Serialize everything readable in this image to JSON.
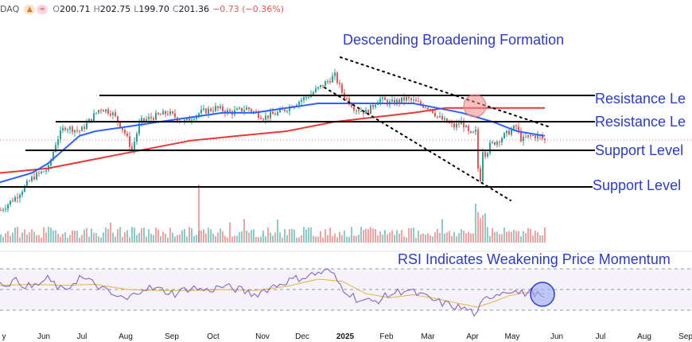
{
  "legend": {
    "symbol": "DAQ",
    "icons": [
      "flame-icon",
      "flag-icon"
    ],
    "open_label": "O",
    "open": "200.71",
    "high_label": "H",
    "high": "202.75",
    "low_label": "L",
    "low": "199.70",
    "close_label": "C",
    "close": "201.36",
    "change": "−0.73 (−0.36%)"
  },
  "colors": {
    "price": "#26a69a",
    "price_down": "#ef5350",
    "ma_short": "#2962ff",
    "ma_long": "#e53935",
    "rsi": "#7e57c2",
    "rsi_ma": "#e2b53c",
    "annotation": "#2b3ad6",
    "highlight_red": "#f28b8b",
    "highlight_blue": "#9aa8f5"
  },
  "chart_data": {
    "type": "line",
    "title": "Descending Broadening Formation",
    "x_ticks": [
      "y",
      "Jun",
      "Jul",
      "Aug",
      "Sep",
      "Oct",
      "Nov",
      "Dec",
      "2025",
      "Feb",
      "Mar",
      "Apr",
      "May",
      "Jun",
      "Jul",
      "Aug",
      "Sep"
    ],
    "horizontal_levels": [
      {
        "label": "Resistance Le",
        "kind": "resistance"
      },
      {
        "label": "Resistance Le",
        "kind": "resistance"
      },
      {
        "label": "Support Level",
        "kind": "support"
      },
      {
        "label": "Support Level",
        "kind": "support"
      }
    ],
    "price_keyframes": [
      [
        0,
        205
      ],
      [
        20,
        208
      ],
      [
        40,
        212
      ],
      [
        60,
        214
      ],
      [
        70,
        220
      ],
      [
        80,
        223
      ],
      [
        100,
        222
      ],
      [
        115,
        225
      ],
      [
        125,
        227
      ],
      [
        140,
        226
      ],
      [
        155,
        222
      ],
      [
        165,
        218
      ],
      [
        175,
        224
      ],
      [
        190,
        225
      ],
      [
        210,
        226
      ],
      [
        230,
        224
      ],
      [
        250,
        226
      ],
      [
        270,
        227
      ],
      [
        290,
        226
      ],
      [
        310,
        227
      ],
      [
        330,
        225
      ],
      [
        350,
        226
      ],
      [
        370,
        228
      ],
      [
        390,
        230
      ],
      [
        405,
        232
      ],
      [
        420,
        234
      ],
      [
        430,
        230
      ],
      [
        445,
        227
      ],
      [
        460,
        226
      ],
      [
        475,
        229
      ],
      [
        490,
        228
      ],
      [
        510,
        229
      ],
      [
        525,
        228
      ],
      [
        540,
        227
      ],
      [
        550,
        225
      ],
      [
        560,
        224
      ],
      [
        570,
        223
      ],
      [
        580,
        224
      ],
      [
        590,
        221
      ],
      [
        598,
        222
      ],
      [
        600,
        214
      ],
      [
        604,
        211
      ],
      [
        606,
        218
      ],
      [
        610,
        217
      ],
      [
        615,
        219
      ],
      [
        625,
        220
      ],
      [
        640,
        222
      ],
      [
        648,
        223
      ],
      [
        655,
        220
      ],
      [
        665,
        221
      ],
      [
        675,
        221
      ],
      [
        685,
        220
      ]
    ],
    "series": [
      {
        "name": "",
        "role": "50-day moving average",
        "points": [
          [
            0,
            211
          ],
          [
            40,
            213
          ],
          [
            60,
            215
          ],
          [
            80,
            218
          ],
          [
            100,
            221
          ],
          [
            120,
            222
          ],
          [
            160,
            223
          ],
          [
            200,
            224
          ],
          [
            240,
            225
          ],
          [
            280,
            226
          ],
          [
            320,
            226
          ],
          [
            360,
            227
          ],
          [
            400,
            228
          ],
          [
            430,
            228
          ],
          [
            460,
            228
          ],
          [
            490,
            228
          ],
          [
            520,
            228
          ],
          [
            550,
            227
          ],
          [
            580,
            226
          ],
          [
            600,
            225
          ],
          [
            620,
            224
          ],
          [
            650,
            222
          ],
          [
            685,
            221
          ]
        ]
      },
      {
        "name": "",
        "role": "200-day moving average",
        "points": [
          [
            0,
            213
          ],
          [
            60,
            214
          ],
          [
            120,
            216
          ],
          [
            180,
            218
          ],
          [
            240,
            220
          ],
          [
            300,
            221
          ],
          [
            360,
            222
          ],
          [
            420,
            224
          ],
          [
            470,
            225
          ],
          [
            520,
            226
          ],
          [
            560,
            227
          ],
          [
            600,
            227
          ],
          [
            640,
            227
          ],
          [
            685,
            227
          ]
        ]
      },
      {
        "name": "",
        "role": "RSI",
        "points": [
          [
            0,
            55
          ],
          [
            20,
            58
          ],
          [
            40,
            52
          ],
          [
            60,
            60
          ],
          [
            80,
            48
          ],
          [
            100,
            62
          ],
          [
            120,
            55
          ],
          [
            140,
            45
          ],
          [
            160,
            40
          ],
          [
            180,
            52
          ],
          [
            200,
            50
          ],
          [
            220,
            46
          ],
          [
            240,
            52
          ],
          [
            260,
            49
          ],
          [
            280,
            53
          ],
          [
            300,
            50
          ],
          [
            320,
            45
          ],
          [
            340,
            52
          ],
          [
            360,
            58
          ],
          [
            380,
            62
          ],
          [
            400,
            66
          ],
          [
            415,
            68
          ],
          [
            430,
            52
          ],
          [
            450,
            40
          ],
          [
            470,
            38
          ],
          [
            490,
            45
          ],
          [
            510,
            50
          ],
          [
            530,
            44
          ],
          [
            550,
            38
          ],
          [
            570,
            34
          ],
          [
            590,
            30
          ],
          [
            600,
            25
          ],
          [
            606,
            38
          ],
          [
            620,
            45
          ],
          [
            640,
            50
          ],
          [
            655,
            46
          ],
          [
            670,
            48
          ],
          [
            685,
            40
          ]
        ]
      },
      {
        "name": "",
        "role": "RSI moving average",
        "points": [
          [
            0,
            54
          ],
          [
            40,
            55
          ],
          [
            80,
            54
          ],
          [
            120,
            55
          ],
          [
            160,
            50
          ],
          [
            200,
            49
          ],
          [
            240,
            49
          ],
          [
            280,
            50
          ],
          [
            320,
            49
          ],
          [
            360,
            53
          ],
          [
            400,
            60
          ],
          [
            430,
            58
          ],
          [
            460,
            46
          ],
          [
            490,
            42
          ],
          [
            520,
            45
          ],
          [
            550,
            41
          ],
          [
            580,
            36
          ],
          [
            600,
            33
          ],
          [
            620,
            38
          ],
          [
            640,
            44
          ],
          [
            660,
            47
          ],
          [
            685,
            46
          ]
        ]
      }
    ],
    "annotations": [
      "Descending Broadening Formation",
      "RSI Indicates Weakening Price Momentum"
    ],
    "grid": false
  }
}
